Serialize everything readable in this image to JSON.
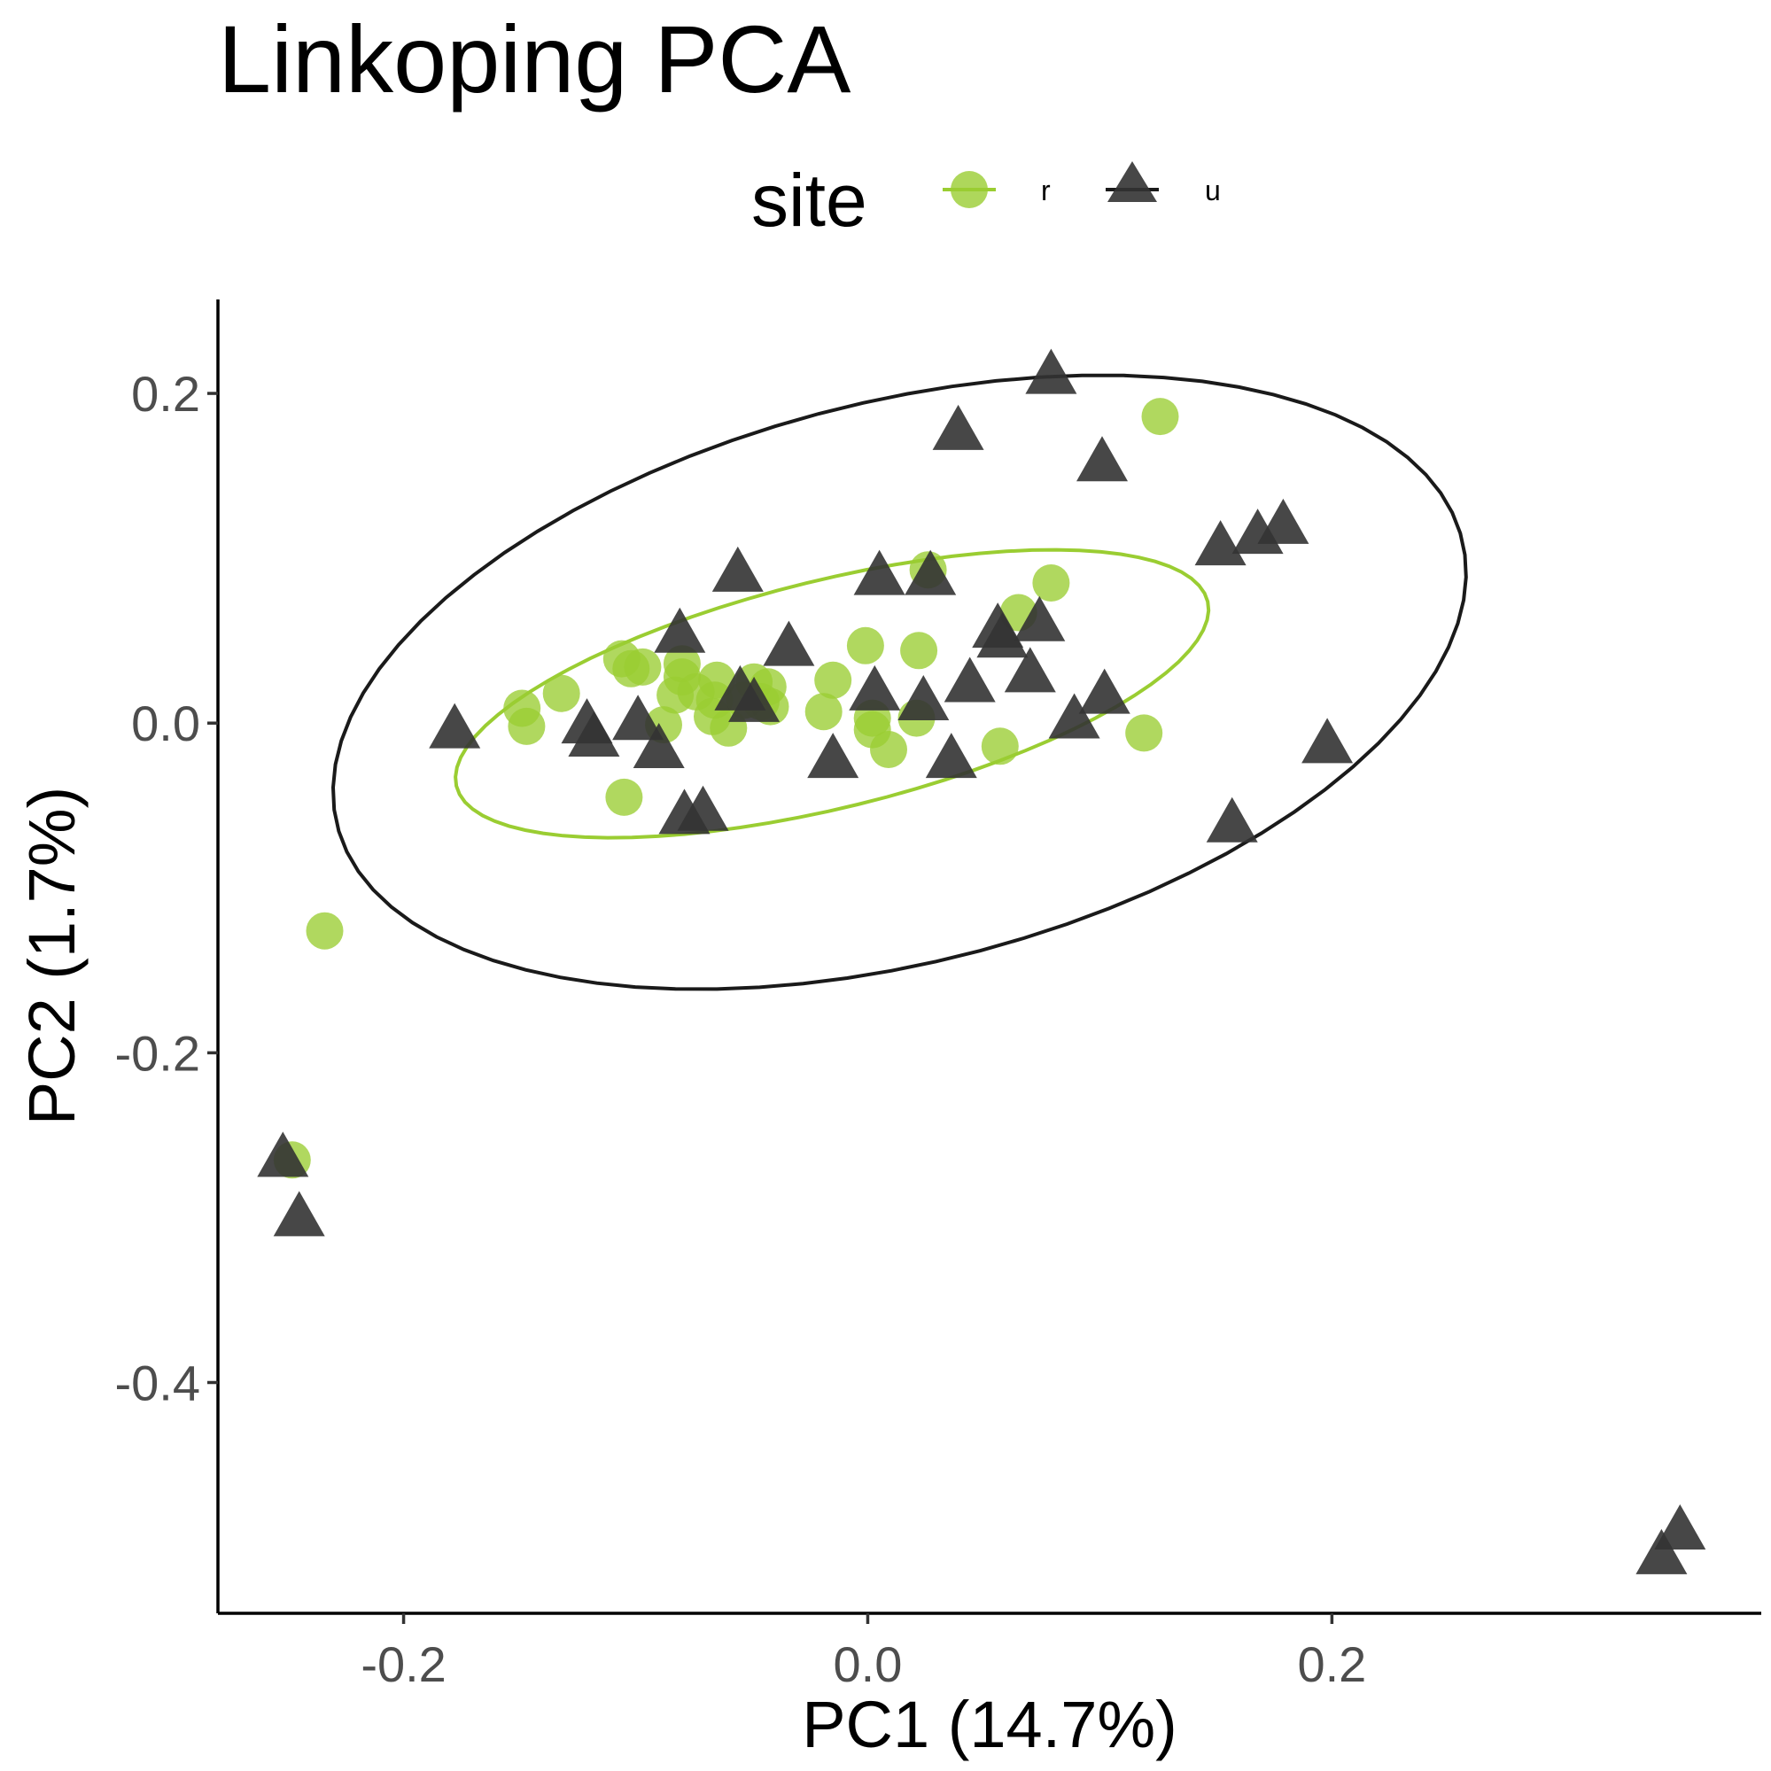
{
  "chart_data": {
    "type": "scatter",
    "title": "Linkoping PCA",
    "xlabel": "PC1 (14.7%)",
    "ylabel": "PC2 (1.7%)",
    "xlim": [
      -0.28,
      0.385
    ],
    "ylim": [
      -0.54,
      0.257
    ],
    "x_ticks": [
      -0.2,
      0.0,
      0.2
    ],
    "x_tick_labels": [
      "-0.2",
      "0.0",
      "0.2"
    ],
    "y_ticks": [
      0.2,
      0.0,
      -0.2,
      -0.4
    ],
    "y_tick_labels": [
      "0.2",
      "0.0",
      "-0.2",
      "-0.4"
    ],
    "grid": false,
    "legend": {
      "title": "site",
      "position": "top"
    },
    "series": [
      {
        "name": "r",
        "marker": "circle",
        "color": "#9acd32",
        "points": [
          [
            0.126,
            0.186
          ],
          [
            0.026,
            0.093
          ],
          [
            0.079,
            0.085
          ],
          [
            0.065,
            0.067
          ],
          [
            -0.001,
            0.047
          ],
          [
            0.022,
            0.044
          ],
          [
            -0.106,
            0.039
          ],
          [
            -0.097,
            0.034
          ],
          [
            -0.102,
            0.033
          ],
          [
            -0.08,
            0.036
          ],
          [
            -0.065,
            0.026
          ],
          [
            -0.08,
            0.028
          ],
          [
            -0.049,
            0.025
          ],
          [
            -0.043,
            0.022
          ],
          [
            -0.015,
            0.026
          ],
          [
            -0.132,
            0.018
          ],
          [
            -0.074,
            0.019
          ],
          [
            -0.083,
            0.017
          ],
          [
            -0.066,
            0.014
          ],
          [
            -0.053,
            0.014
          ],
          [
            -0.046,
            0.013
          ],
          [
            -0.042,
            0.01
          ],
          [
            -0.149,
            0.009
          ],
          [
            -0.067,
            0.004
          ],
          [
            -0.019,
            0.007
          ],
          [
            0.002,
            0.003
          ],
          [
            0.021,
            0.003
          ],
          [
            -0.147,
            -0.002
          ],
          [
            -0.088,
            -0.001
          ],
          [
            -0.06,
            -0.003
          ],
          [
            0.002,
            -0.004
          ],
          [
            0.119,
            -0.006
          ],
          [
            0.009,
            -0.016
          ],
          [
            0.057,
            -0.014
          ],
          [
            -0.105,
            -0.045
          ],
          [
            -0.234,
            -0.126
          ],
          [
            -0.248,
            -0.265
          ]
        ]
      },
      {
        "name": "u",
        "marker": "triangle",
        "color": "#333333",
        "points": [
          [
            0.079,
            0.211
          ],
          [
            0.039,
            0.177
          ],
          [
            0.101,
            0.158
          ],
          [
            0.179,
            0.12
          ],
          [
            0.168,
            0.114
          ],
          [
            0.152,
            0.107
          ],
          [
            -0.056,
            0.091
          ],
          [
            0.005,
            0.089
          ],
          [
            0.027,
            0.089
          ],
          [
            -0.081,
            0.054
          ],
          [
            0.056,
            0.057
          ],
          [
            0.074,
            0.061
          ],
          [
            0.058,
            0.051
          ],
          [
            -0.034,
            0.046
          ],
          [
            0.07,
            0.03
          ],
          [
            0.044,
            0.024
          ],
          [
            -0.055,
            0.019
          ],
          [
            0.003,
            0.019
          ],
          [
            0.024,
            0.013
          ],
          [
            -0.049,
            0.012
          ],
          [
            0.102,
            0.017
          ],
          [
            -0.099,
            0.001
          ],
          [
            -0.121,
            -0.001
          ],
          [
            0.089,
            0.002
          ],
          [
            -0.178,
            -0.004
          ],
          [
            -0.118,
            -0.009
          ],
          [
            -0.09,
            -0.016
          ],
          [
            -0.015,
            -0.022
          ],
          [
            0.036,
            -0.022
          ],
          [
            0.198,
            -0.013
          ],
          [
            -0.079,
            -0.056
          ],
          [
            -0.071,
            -0.054
          ],
          [
            0.157,
            -0.061
          ],
          [
            -0.252,
            -0.264
          ],
          [
            -0.245,
            -0.3
          ],
          [
            0.35,
            -0.49
          ],
          [
            0.342,
            -0.505
          ]
        ]
      }
    ],
    "ellipses": [
      {
        "series": "u",
        "color": "#1a1a1a",
        "cx": 0.0137,
        "cy": 0.0248,
        "rx": 0.2599,
        "ry": 0.1635,
        "angle_deg": 26.2
      },
      {
        "series": "r",
        "color": "#9acd32",
        "cx": -0.0154,
        "cy": 0.0178,
        "rx": 0.1717,
        "ry": 0.0669,
        "angle_deg": 20.8
      }
    ]
  }
}
